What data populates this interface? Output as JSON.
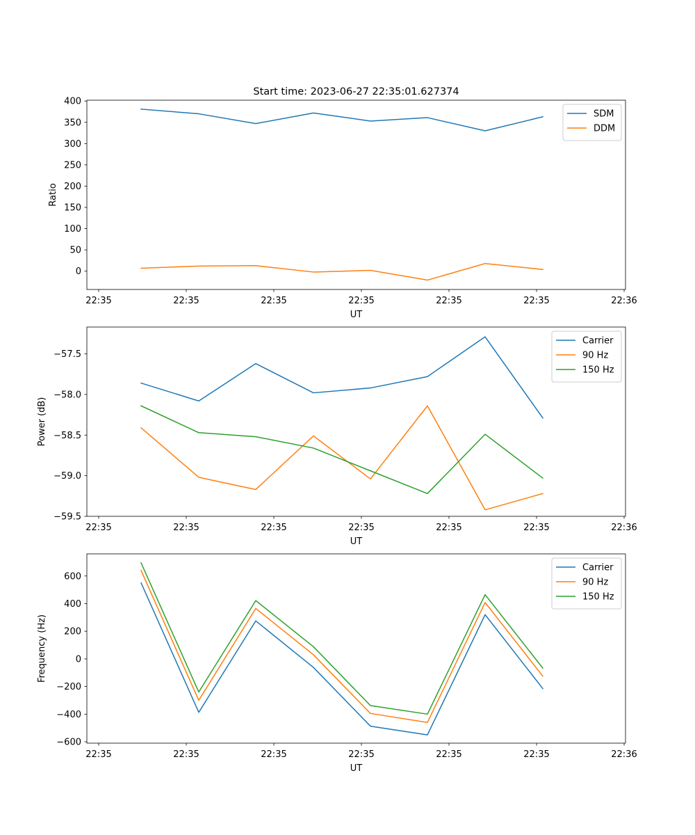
{
  "figure_title": "Start time: 2023-06-27 22:35:01.627374",
  "x_ticks": [
    "22:35",
    "22:35",
    "22:35",
    "22:35",
    "22:35",
    "22:35",
    "22:36"
  ],
  "chart_data": [
    {
      "type": "line",
      "xlabel": "UT",
      "ylabel": "Ratio",
      "ylim": [
        -43,
        402
      ],
      "yticks": [
        0,
        50,
        100,
        150,
        200,
        250,
        300,
        350,
        400
      ],
      "ytick_labels": [
        "0",
        "50",
        "100",
        "150",
        "200",
        "250",
        "300",
        "350",
        "400"
      ],
      "legend": "upper right",
      "grid": false,
      "series": [
        {
          "name": "SDM",
          "color": "#1f77b4",
          "values": [
            381,
            370,
            347,
            372,
            353,
            361,
            330,
            363
          ]
        },
        {
          "name": "DDM",
          "color": "#ff7f0e",
          "values": [
            7,
            12,
            13,
            -2,
            2,
            -21,
            18,
            4
          ]
        }
      ]
    },
    {
      "type": "line",
      "xlabel": "UT",
      "ylabel": "Power (dB)",
      "ylim": [
        -59.5,
        -57.17
      ],
      "yticks": [
        -59.5,
        -59.0,
        -58.5,
        -58.0,
        -57.5
      ],
      "ytick_labels": [
        "−59.5",
        "−59.0",
        "−58.5",
        "−58.0",
        "−57.5"
      ],
      "legend": "upper right",
      "grid": false,
      "series": [
        {
          "name": "Carrier",
          "color": "#1f77b4",
          "values": [
            -57.86,
            -58.08,
            -57.62,
            -57.98,
            -57.92,
            -57.78,
            -57.29,
            -58.29
          ]
        },
        {
          "name": "90 Hz",
          "color": "#ff7f0e",
          "values": [
            -58.41,
            -59.02,
            -59.17,
            -58.51,
            -59.04,
            -58.14,
            -59.42,
            -59.22
          ]
        },
        {
          "name": "150 Hz",
          "color": "#2ca02c",
          "values": [
            -58.14,
            -58.47,
            -58.52,
            -58.66,
            -58.94,
            -59.22,
            -58.49,
            -59.03
          ]
        }
      ]
    },
    {
      "type": "line",
      "xlabel": "UT",
      "ylabel": "Frequency (Hz)",
      "ylim": [
        -610,
        760
      ],
      "yticks": [
        -600,
        -400,
        -200,
        0,
        200,
        400,
        600
      ],
      "ytick_labels": [
        "−600",
        "−400",
        "−200",
        "0",
        "200",
        "400",
        "600"
      ],
      "legend": "upper right",
      "grid": false,
      "series": [
        {
          "name": "Carrier",
          "color": "#1f77b4",
          "values": [
            550,
            -387,
            275,
            -62,
            -487,
            -550,
            320,
            -215
          ]
        },
        {
          "name": "90 Hz",
          "color": "#ff7f0e",
          "values": [
            640,
            -300,
            365,
            30,
            -395,
            -460,
            408,
            -125
          ]
        },
        {
          "name": "150 Hz",
          "color": "#2ca02c",
          "values": [
            695,
            -240,
            422,
            88,
            -338,
            -400,
            465,
            -67
          ]
        }
      ]
    }
  ]
}
